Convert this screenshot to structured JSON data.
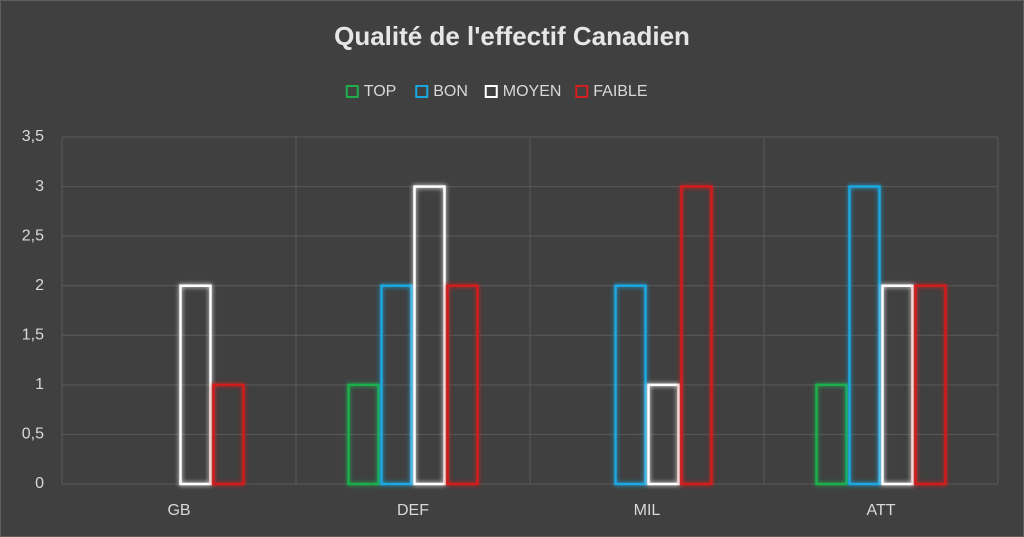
{
  "chart_data": {
    "type": "bar",
    "title": "Qualité de l'effectif Canadien",
    "categories": [
      "GB",
      "DEF",
      "MIL",
      "ATT"
    ],
    "series": [
      {
        "name": "TOP",
        "color": "#1fae4b",
        "values": [
          0,
          1,
          0,
          1
        ]
      },
      {
        "name": "BON",
        "color": "#1aa7df",
        "values": [
          0,
          2,
          2,
          3
        ]
      },
      {
        "name": "MOYEN",
        "color": "#ffffff",
        "values": [
          2,
          3,
          1,
          2
        ]
      },
      {
        "name": "FAIBLE",
        "color": "#d21f1f",
        "values": [
          1,
          2,
          3,
          2
        ]
      }
    ],
    "ylim": [
      0,
      3.5
    ],
    "yticks": [
      0,
      {
        "value": 0.5,
        "label": "0,5"
      },
      1,
      {
        "value": 1.5,
        "label": "1,5"
      },
      2,
      {
        "value": 2.5,
        "label": "2,5"
      },
      3,
      {
        "value": 3.5,
        "label": "3,5"
      }
    ],
    "grid": true,
    "legend": "top"
  }
}
